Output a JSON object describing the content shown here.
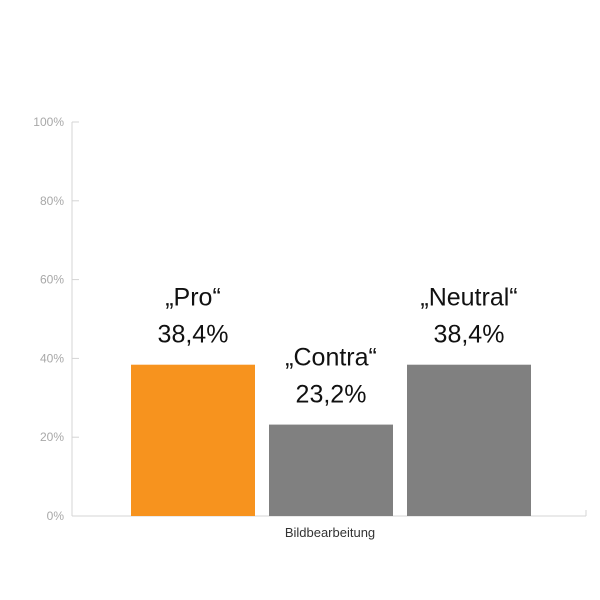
{
  "chart_data": {
    "type": "bar",
    "categories": [
      "Bildbearbeitung"
    ],
    "series": [
      {
        "label": "„Pro“",
        "value": 38.4,
        "display": "38,4%",
        "color": "#f7931e"
      },
      {
        "label": "„Contra“",
        "value": 23.2,
        "display": "23,2%",
        "color": "#808080"
      },
      {
        "label": "„Neutral“",
        "value": 38.4,
        "display": "38,4%",
        "color": "#808080"
      }
    ],
    "y_ticks": [
      "0%",
      "20%",
      "40%",
      "60%",
      "80%",
      "100%"
    ],
    "ylim": [
      0,
      100
    ],
    "grid": false,
    "legend": "none",
    "title": "",
    "xlabel": "",
    "ylabel": "",
    "axis_color": "#d4d4d4"
  }
}
